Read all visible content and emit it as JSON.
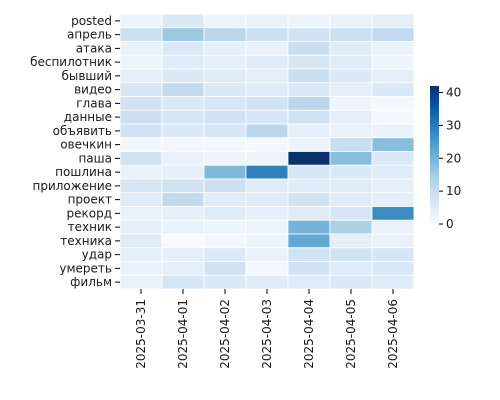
{
  "chart_data": {
    "type": "heatmap",
    "title": "",
    "xlabel": "",
    "ylabel": "",
    "colormap": "Blues",
    "vmin": 0,
    "vmax": 42,
    "colorbar_ticks": [
      0,
      10,
      20,
      30,
      40
    ],
    "colorbar_tick_labels": [
      "0",
      "10",
      "20",
      "30",
      "40"
    ],
    "grid_lines": "white",
    "x": [
      "2025-03-31",
      "2025-04-01",
      "2025-04-02",
      "2025-04-03",
      "2025-04-04",
      "2025-04-05",
      "2025-04-06"
    ],
    "y": [
      "posted",
      "апрель",
      "атака",
      "беспилотник",
      "бывший",
      "видео",
      "глава",
      "данные",
      "объявить",
      "овечкин",
      "паша",
      "пошлина",
      "приложение",
      "проект",
      "рекорд",
      "техник",
      "техника",
      "удар",
      "умереть",
      "фильм"
    ],
    "values": [
      [
        2,
        6,
        2,
        3,
        2,
        3,
        4
      ],
      [
        9,
        16,
        12,
        9,
        8,
        9,
        11
      ],
      [
        3,
        6,
        4,
        3,
        10,
        5,
        3
      ],
      [
        2,
        5,
        4,
        5,
        7,
        5,
        2
      ],
      [
        4,
        6,
        5,
        4,
        10,
        6,
        4
      ],
      [
        7,
        11,
        6,
        5,
        6,
        4,
        6
      ],
      [
        8,
        6,
        7,
        8,
        12,
        2,
        1
      ],
      [
        9,
        7,
        8,
        7,
        8,
        4,
        1
      ],
      [
        8,
        6,
        7,
        12,
        4,
        3,
        3
      ],
      [
        1,
        1,
        1,
        1,
        2,
        10,
        18
      ],
      [
        8,
        3,
        2,
        2,
        42,
        18,
        6
      ],
      [
        3,
        4,
        19,
        29,
        7,
        6,
        5
      ],
      [
        7,
        8,
        9,
        5,
        5,
        5,
        4
      ],
      [
        5,
        11,
        5,
        5,
        8,
        5,
        4
      ],
      [
        3,
        4,
        5,
        4,
        5,
        7,
        27
      ],
      [
        4,
        3,
        2,
        2,
        20,
        14,
        3
      ],
      [
        5,
        0,
        1,
        2,
        22,
        4,
        3
      ],
      [
        4,
        4,
        6,
        3,
        8,
        8,
        7
      ],
      [
        3,
        4,
        8,
        1,
        8,
        5,
        6
      ],
      [
        3,
        7,
        6,
        5,
        5,
        6,
        5
      ]
    ]
  }
}
